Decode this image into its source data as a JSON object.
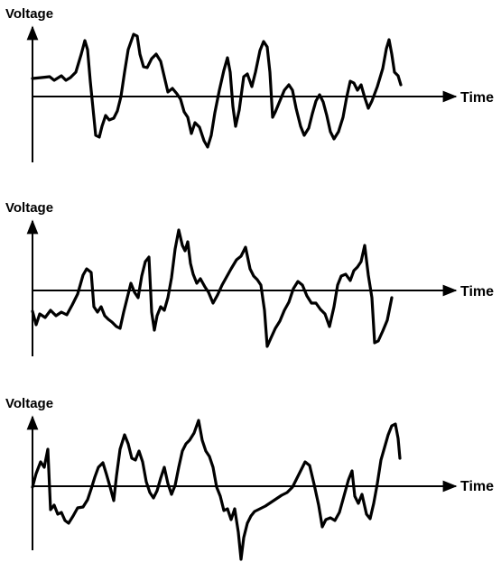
{
  "panels": [
    {
      "y_label": "Voltage",
      "x_label": "Time"
    },
    {
      "y_label": "Voltage",
      "x_label": "Time"
    },
    {
      "y_label": "Voltage",
      "x_label": "Time"
    }
  ]
}
